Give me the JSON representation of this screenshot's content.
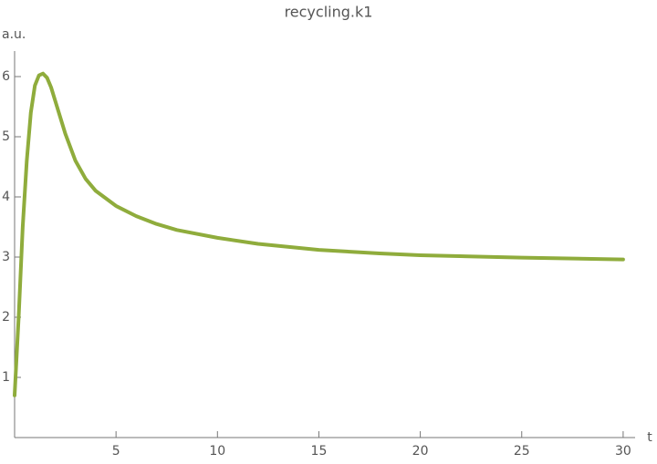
{
  "chart_data": {
    "type": "line",
    "title": "recycling.k1",
    "x_label": "t",
    "y_label": "a.u.",
    "x": [
      0,
      0.2,
      0.4,
      0.6,
      0.8,
      1.0,
      1.2,
      1.4,
      1.6,
      1.8,
      2.0,
      2.5,
      3,
      3.5,
      4,
      5,
      6,
      7,
      8,
      10,
      12,
      15,
      18,
      20,
      25,
      30
    ],
    "series": [
      {
        "name": "recycling.k1",
        "color": "#8fac3c",
        "values": [
          0.7,
          2.0,
          3.5,
          4.6,
          5.4,
          5.85,
          6.02,
          6.05,
          5.98,
          5.82,
          5.6,
          5.05,
          4.6,
          4.3,
          4.1,
          3.85,
          3.68,
          3.55,
          3.45,
          3.32,
          3.22,
          3.12,
          3.06,
          3.03,
          2.99,
          2.96
        ]
      }
    ],
    "xlim": [
      0,
      30.5
    ],
    "ylim": [
      0,
      6.4
    ],
    "xticks": [
      5,
      10,
      15,
      20,
      25,
      30
    ],
    "yticks": [
      1,
      2,
      3,
      4,
      5,
      6
    ]
  }
}
